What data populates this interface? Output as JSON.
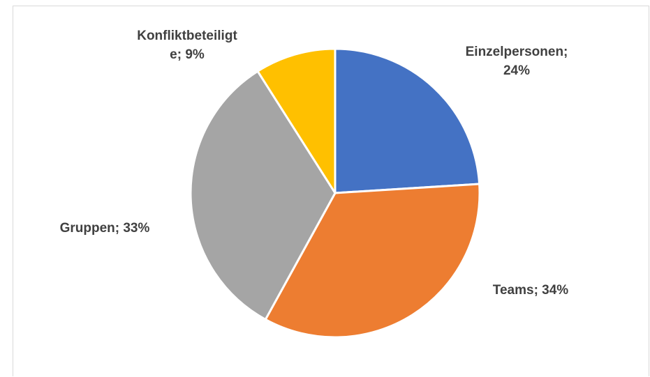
{
  "chart_data": {
    "type": "pie",
    "title": "",
    "series": [
      {
        "values": [
          24,
          34,
          33,
          9
        ],
        "categories": [
          "Einzelpersonen",
          "Teams",
          "Gruppen",
          "Konfliktbeteiligte"
        ]
      }
    ],
    "slices": [
      {
        "label_lines": [
          "Einzelpersonen;",
          "24%"
        ],
        "value": 24,
        "color": "#4472C4"
      },
      {
        "label_lines": [
          "Teams; 34%"
        ],
        "value": 34,
        "color": "#ED7D31"
      },
      {
        "label_lines": [
          "Gruppen; 33%"
        ],
        "value": 33,
        "color": "#A5A5A5"
      },
      {
        "label_lines": [
          "Konfliktbeteiligt",
          "e; 9%"
        ],
        "value": 9,
        "color": "#FFC000"
      }
    ],
    "start_angle_deg": 0,
    "direction": "clockwise",
    "legend": "none",
    "data_labels": "category and percentage, outside end"
  }
}
